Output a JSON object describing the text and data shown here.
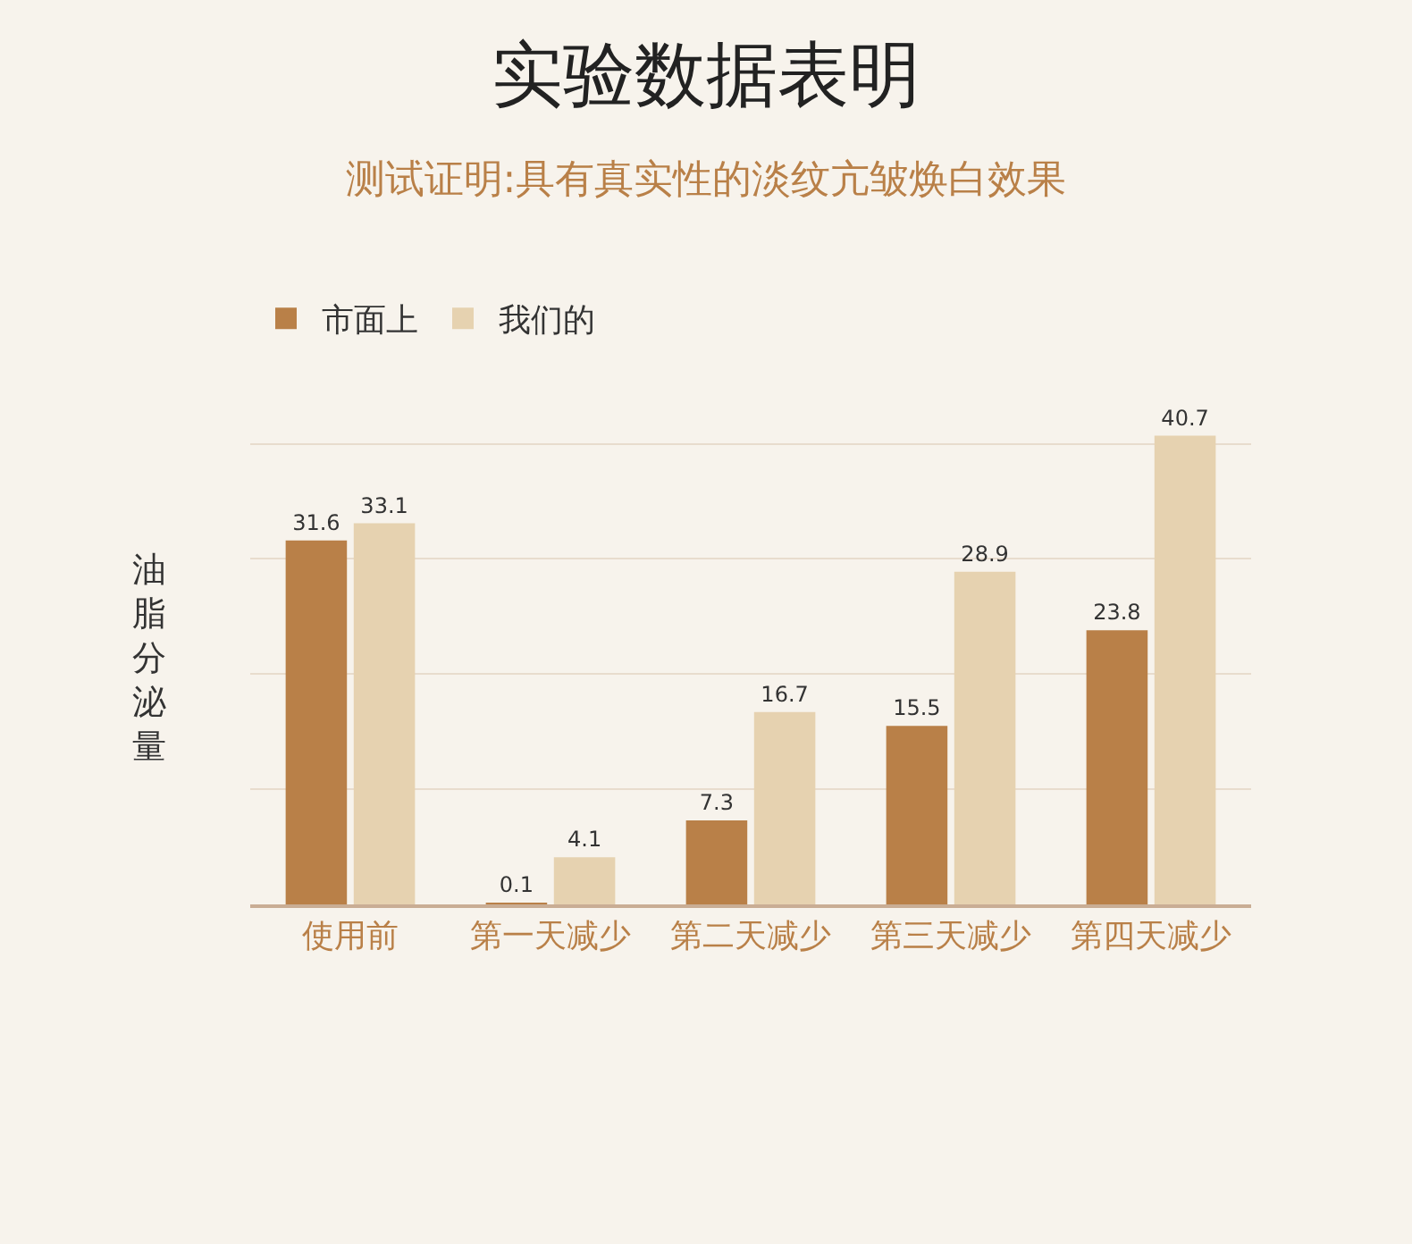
{
  "chart_data": {
    "type": "bar",
    "title": "实验数据表明",
    "subtitle": "测试证明:具有真实性的淡纹亢皱焕白效果",
    "ylabel": "油脂分泌量",
    "categories": [
      "使用前",
      "第一天减少",
      "第二天减少",
      "第三天减少",
      "第四天减少"
    ],
    "series": [
      {
        "name": "市面上",
        "color": "#b98048",
        "values": [
          31.6,
          0.1,
          7.3,
          15.5,
          23.8
        ]
      },
      {
        "name": "我们的",
        "color": "#e6d2b0",
        "values": [
          33.1,
          4.1,
          16.7,
          28.9,
          40.7
        ]
      }
    ],
    "data_labels": true,
    "grid": "y",
    "legend": "top left",
    "tick_labels": "x"
  }
}
